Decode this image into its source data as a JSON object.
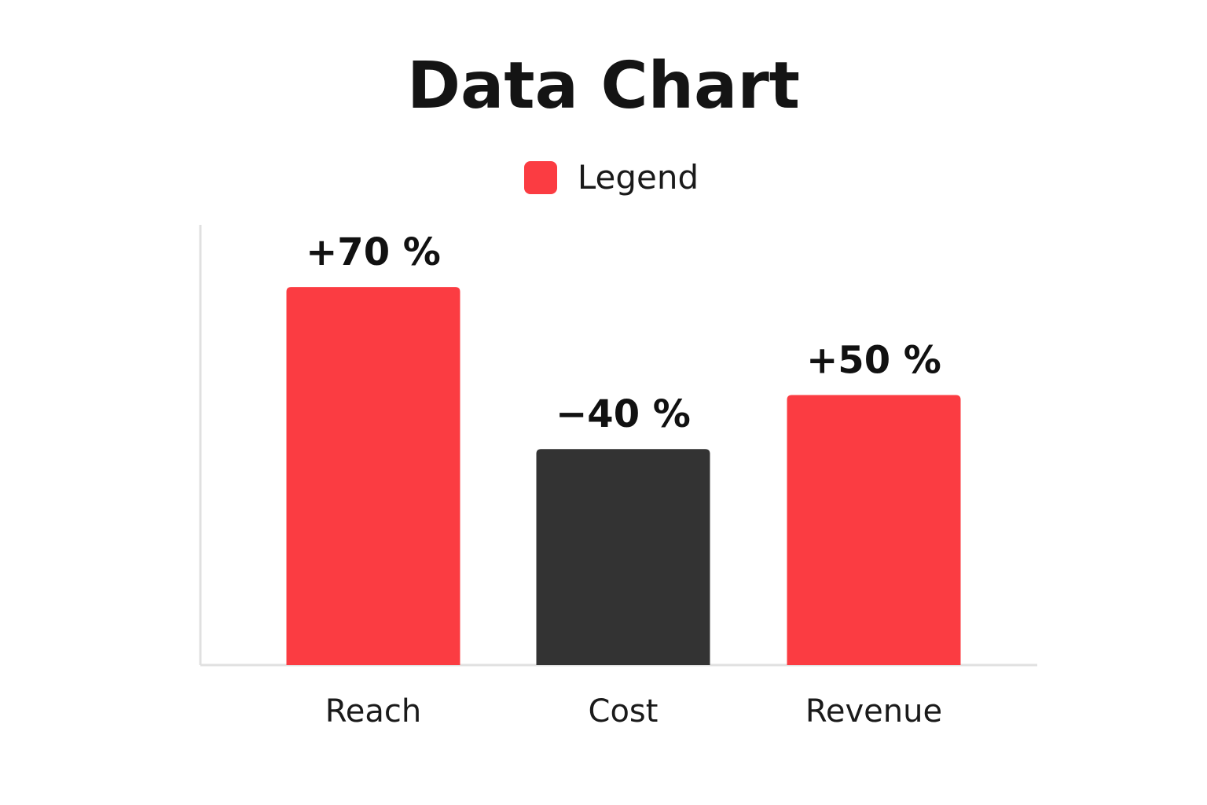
{
  "chart_data": {
    "type": "bar",
    "title": "Data Chart",
    "xlabel": "",
    "ylabel": "",
    "ylim": [
      0,
      80
    ],
    "grid": false,
    "legend": {
      "placement": "top-center",
      "entries": [
        {
          "label": "Legend",
          "color": "#fb3c42"
        }
      ]
    },
    "categories": [
      "Reach",
      "Cost",
      "Revenue"
    ],
    "values": [
      70,
      -40,
      50
    ],
    "bar_magnitudes": [
      70,
      40,
      50
    ],
    "value_labels": [
      "+70 %",
      "−40 %",
      "+50 %"
    ],
    "bar_colors": [
      "#fb3c42",
      "#333333",
      "#fb3c42"
    ],
    "axis_color": "#e0e0e0"
  }
}
